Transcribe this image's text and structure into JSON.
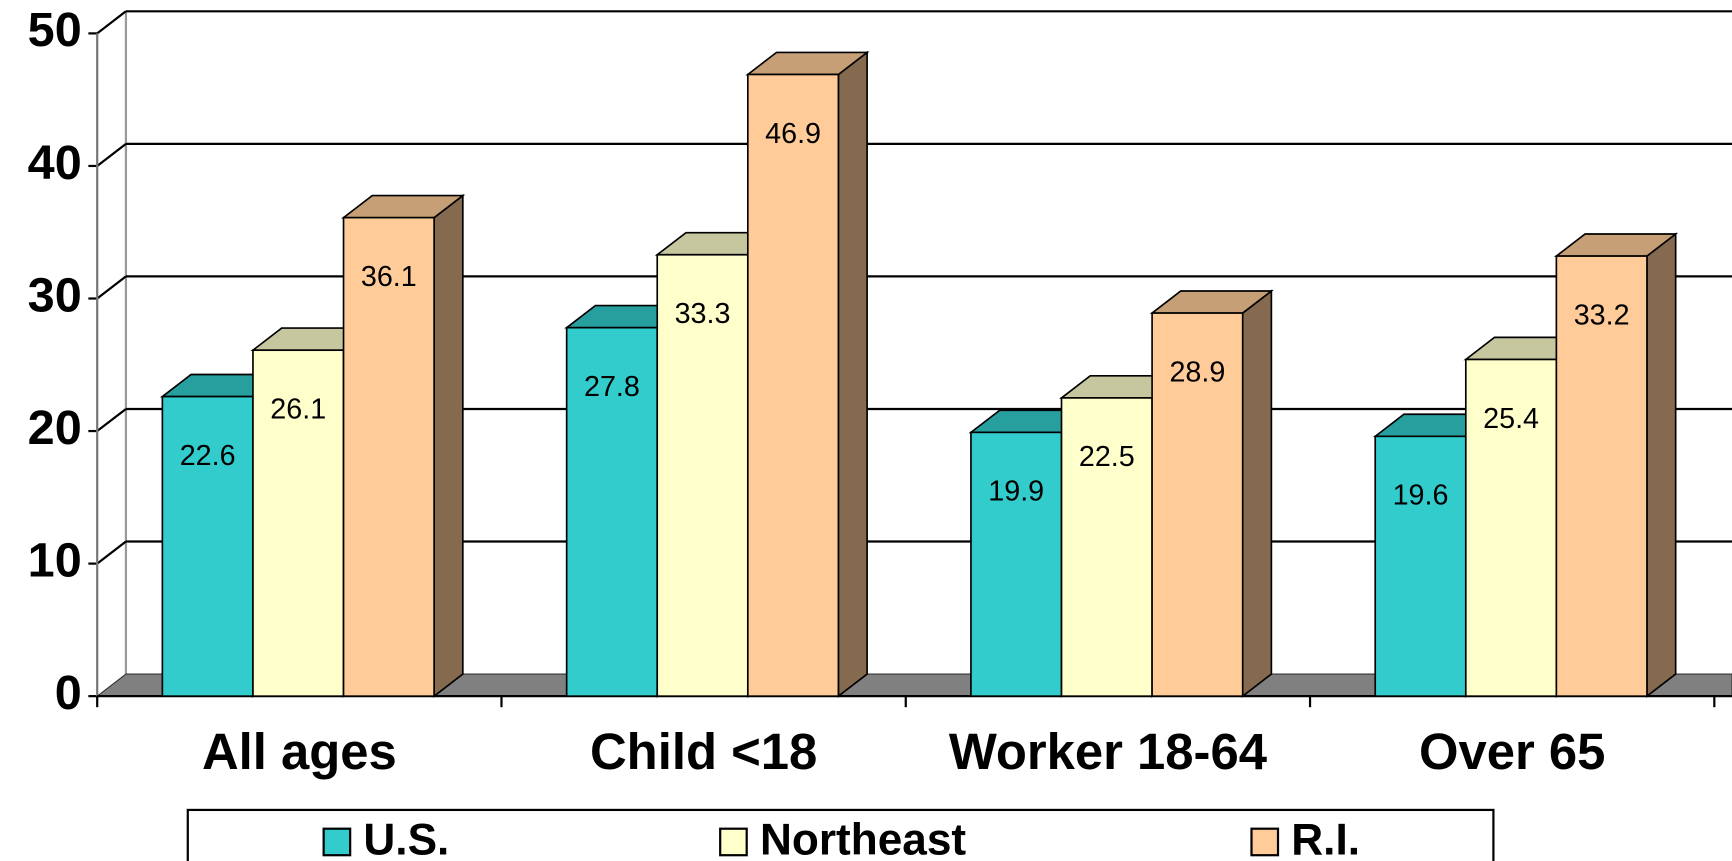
{
  "chart_data": {
    "type": "bar3d",
    "categories": [
      "All ages",
      "Child <18",
      "Worker 18-64",
      "Over 65"
    ],
    "series": [
      {
        "name": "U.S.",
        "color": "#33cccc",
        "values": [
          22.6,
          27.8,
          19.9,
          19.6
        ]
      },
      {
        "name": "Northeast",
        "color": "#ffffcc",
        "values": [
          26.1,
          33.3,
          22.5,
          25.4
        ]
      },
      {
        "name": "R.I.",
        "color": "#ffcc99",
        "values": [
          36.1,
          46.9,
          28.9,
          33.2
        ]
      }
    ],
    "ylim": [
      0,
      50
    ],
    "yticks": [
      0,
      10,
      20,
      30,
      40,
      50
    ],
    "grid": true,
    "legend": "bottom"
  }
}
